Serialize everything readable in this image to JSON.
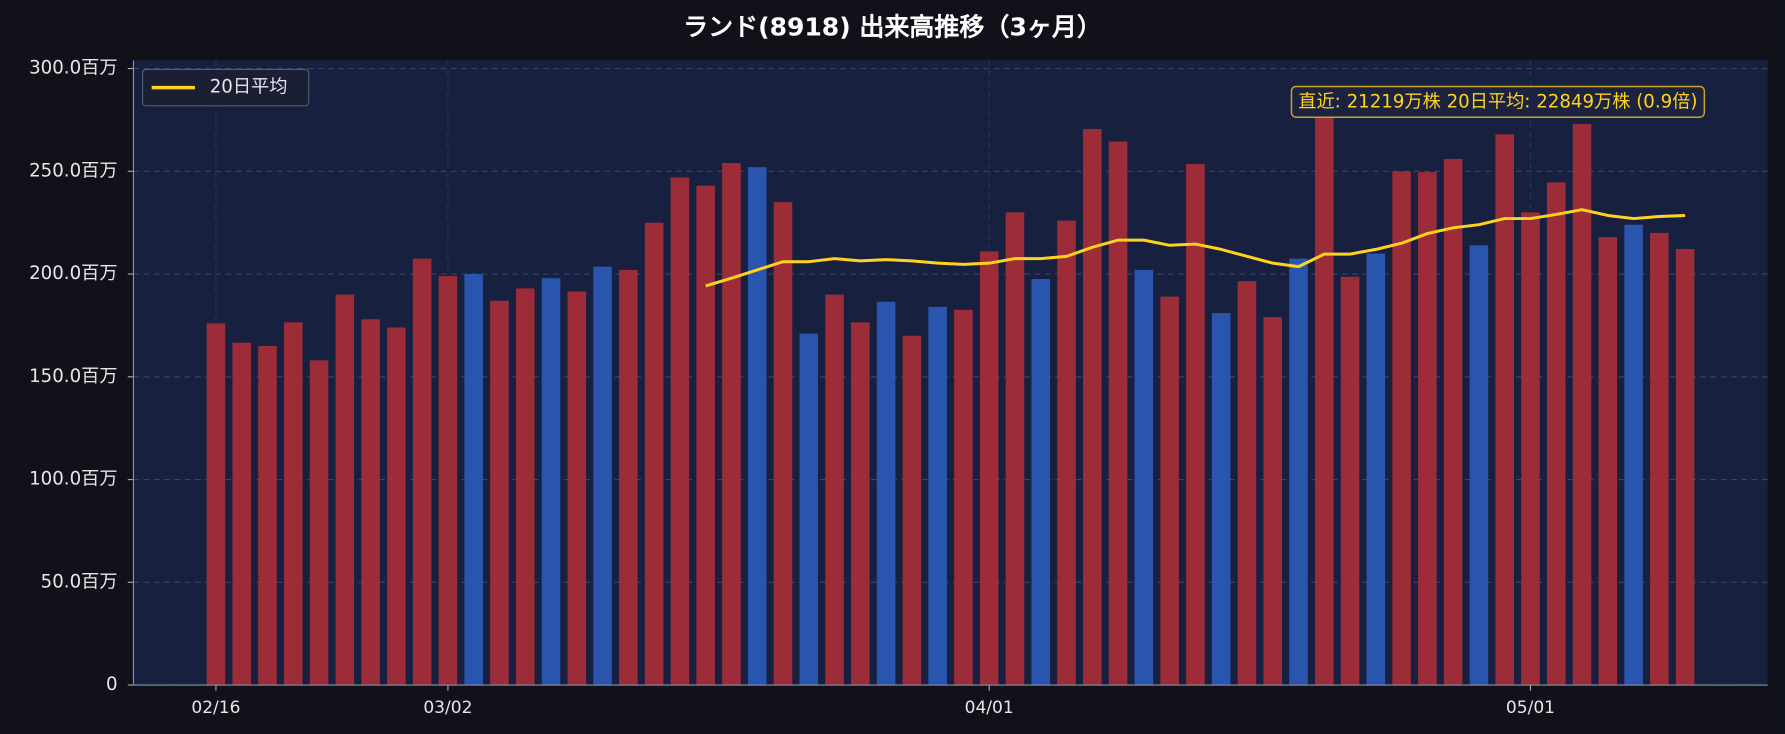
{
  "chart_data": {
    "type": "bar",
    "title": "ランド(8918) 出来高推移（3ヶ月）",
    "categories": [
      "02/16",
      null,
      null,
      null,
      null,
      null,
      null,
      null,
      null,
      "03/02",
      null,
      null,
      null,
      null,
      null,
      null,
      null,
      null,
      null,
      null,
      null,
      null,
      null,
      null,
      null,
      null,
      null,
      null,
      null,
      null,
      "04/01",
      null,
      null,
      null,
      null,
      null,
      null,
      null,
      null,
      null,
      null,
      null,
      null,
      null,
      null,
      null,
      null,
      null,
      null,
      null,
      null,
      "05/01",
      null,
      null,
      null,
      null,
      null,
      null
    ],
    "series": [
      {
        "type": "bar",
        "colors": [
          "#a82e37",
          "#a82e37",
          "#a82e37",
          "#a82e37",
          "#a82e37",
          "#a82e37",
          "#a82e37",
          "#a82e37",
          "#a82e37",
          "#a82e37",
          "#2d5ab8",
          "#a82e37",
          "#a82e37",
          "#2d5ab8",
          "#a82e37",
          "#2d5ab8",
          "#a82e37",
          "#a82e37",
          "#a82e37",
          "#a82e37",
          "#a82e37",
          "#2d5ab8",
          "#a82e37",
          "#2d5ab8",
          "#a82e37",
          "#a82e37",
          "#2d5ab8",
          "#a82e37",
          "#2d5ab8",
          "#a82e37",
          "#a82e37",
          "#a82e37",
          "#2d5ab8",
          "#a82e37",
          "#a82e37",
          "#a82e37",
          "#2d5ab8",
          "#a82e37",
          "#a82e37",
          "#2d5ab8",
          "#a82e37",
          "#a82e37",
          "#2d5ab8",
          "#a82e37",
          "#a82e37",
          "#2d5ab8",
          "#a82e37",
          "#a82e37",
          "#a82e37",
          "#2d5ab8",
          "#a82e37",
          "#a82e37",
          "#a82e37",
          "#a82e37",
          "#a82e37",
          "#2d5ab8",
          "#a82e37",
          "#a82e37"
        ],
        "values": [
          176,
          166.6,
          165,
          176.5,
          158,
          190,
          178,
          174,
          207.5,
          199,
          200,
          187,
          193,
          198,
          191.5,
          203.6,
          202,
          225,
          247,
          243,
          254,
          252,
          235,
          171,
          190,
          176.5,
          186.5,
          170,
          184,
          182.6,
          211,
          230,
          197.6,
          226,
          270.6,
          264.5,
          202,
          189,
          253.5,
          181,
          196.5,
          179,
          207.5,
          280,
          198.7,
          210,
          250,
          249.6,
          256,
          214,
          268,
          230,
          244.6,
          273,
          218,
          224,
          220,
          212.19
        ]
      },
      {
        "type": "line",
        "name": "20日平均",
        "color": "#ffd21f",
        "values": [
          null,
          null,
          null,
          null,
          null,
          null,
          null,
          null,
          null,
          null,
          null,
          null,
          null,
          null,
          null,
          null,
          null,
          null,
          null,
          194.2,
          198,
          202,
          206,
          206,
          207.5,
          206.4,
          207,
          206.4,
          205.3,
          204.7,
          205.3,
          207.5,
          207.5,
          208.6,
          213,
          216.5,
          216.5,
          214,
          214.6,
          212,
          208.6,
          205.3,
          203.6,
          209.7,
          209.7,
          212,
          215,
          219.7,
          222.5,
          224,
          227,
          227,
          229,
          231.3,
          228.5,
          227,
          228,
          228.49
        ]
      }
    ],
    "ylim": [
      0,
      304
    ],
    "yticks": [
      0,
      {
        "value": 50,
        "label": "50.0百万"
      },
      {
        "value": 100,
        "label": "100.0百万"
      },
      {
        "value": 150,
        "label": "150.0百万"
      },
      {
        "value": 200,
        "label": "200.0百万"
      },
      {
        "value": 250,
        "label": "250.0百万"
      },
      {
        "value": 300,
        "label": "300.0百万"
      }
    ],
    "grid": true,
    "legend": "upper left",
    "annotation": "直近: 21219万株  20日平均: 22849万株  (0.9倍)"
  }
}
